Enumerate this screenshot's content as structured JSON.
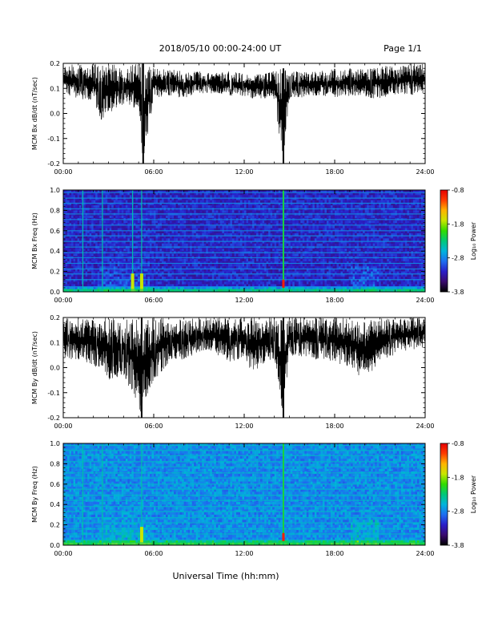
{
  "header": {
    "title": "2018/05/10  00:00-24:00 UT",
    "page": "Page 1/1"
  },
  "footer": {
    "xlabel": "Universal Time (hh:mm)"
  },
  "colorbar": {
    "label": "Log₁₀ Power",
    "ticks": [
      "-0.8",
      "-1.8",
      "-2.8",
      "-3.8"
    ],
    "range": [
      -3.8,
      -0.8
    ],
    "colormap": [
      "#000000",
      "#3a0a6e",
      "#2a1ec8",
      "#1e6ef0",
      "#00b4dc",
      "#00c878",
      "#32dc00",
      "#c8e600",
      "#ffb400",
      "#ff3c00",
      "#e60000"
    ]
  },
  "chart_data": [
    {
      "type": "line",
      "ylabel": "MCM Bx dB/dt (nT/sec)",
      "xlim": [
        0,
        24
      ],
      "ylim": [
        -0.2,
        0.2
      ],
      "x_ticks": [
        "00:00",
        "06:00",
        "12:00",
        "18:00",
        "24:00"
      ],
      "y_ticks": [
        "-0.2",
        "-0.1",
        "0.0",
        "0.1",
        "0.2"
      ],
      "envelope": {
        "hours": [
          0,
          1,
          2,
          2.5,
          3,
          4,
          5,
          5.3,
          6,
          7,
          8,
          9,
          10,
          11,
          12,
          12.5,
          13,
          14,
          14.6,
          15,
          16,
          17,
          18,
          19,
          20,
          21,
          22,
          23,
          24
        ],
        "upper": [
          0.19,
          0.2,
          0.2,
          0.19,
          0.2,
          0.19,
          0.2,
          0.2,
          0.18,
          0.18,
          0.17,
          0.17,
          0.16,
          0.17,
          0.16,
          0.15,
          0.16,
          0.17,
          0.18,
          0.17,
          0.17,
          0.17,
          0.18,
          0.18,
          0.18,
          0.19,
          0.19,
          0.2,
          0.2
        ],
        "lower": [
          0.08,
          0.06,
          0.04,
          -0.03,
          0.0,
          0.03,
          0.02,
          -0.2,
          0.06,
          0.07,
          0.06,
          0.08,
          0.08,
          0.07,
          0.07,
          0.06,
          0.06,
          0.05,
          -0.2,
          0.06,
          0.06,
          0.07,
          0.06,
          0.07,
          0.06,
          0.06,
          0.07,
          0.07,
          0.08
        ]
      }
    },
    {
      "type": "heatmap",
      "ylabel": "MCM Bx Freq (Hz)",
      "xlim": [
        0,
        24
      ],
      "ylim": [
        0,
        1
      ],
      "x_ticks": [
        "00:00",
        "06:00",
        "12:00",
        "18:00",
        "24:00"
      ],
      "y_ticks": [
        "0.0",
        "0.2",
        "0.4",
        "0.6",
        "0.8",
        "1.0"
      ],
      "value_range": [
        -3.8,
        -0.8
      ],
      "harmonic_lines_hz": [
        0.05,
        0.12,
        0.175,
        0.225,
        0.28,
        0.335,
        0.385,
        0.44,
        0.495,
        0.55,
        0.6,
        0.655,
        0.71,
        0.765,
        0.815,
        0.87,
        0.92,
        0.975
      ],
      "bright_events_hours": [
        1.3,
        2.6,
        4.6,
        5.2,
        14.6
      ]
    },
    {
      "type": "line",
      "ylabel": "MCM By dB/dt (nT/sec)",
      "xlim": [
        0,
        24
      ],
      "ylim": [
        -0.2,
        0.2
      ],
      "x_ticks": [
        "00:00",
        "06:00",
        "12:00",
        "18:00",
        "24:00"
      ],
      "y_ticks": [
        "-0.2",
        "-0.1",
        "0.0",
        "0.1",
        "0.2"
      ],
      "envelope": {
        "hours": [
          0,
          1,
          2,
          3,
          4,
          4.7,
          5.2,
          6,
          7,
          8,
          9,
          10,
          11,
          12,
          12.5,
          13,
          14,
          14.6,
          15,
          16,
          17,
          18,
          19,
          20,
          21,
          22,
          23,
          24
        ],
        "upper": [
          0.2,
          0.2,
          0.2,
          0.2,
          0.2,
          0.2,
          0.2,
          0.2,
          0.2,
          0.19,
          0.2,
          0.2,
          0.2,
          0.2,
          0.2,
          0.2,
          0.2,
          0.2,
          0.2,
          0.2,
          0.2,
          0.2,
          0.2,
          0.19,
          0.2,
          0.2,
          0.2,
          0.2
        ],
        "lower": [
          0.04,
          0.02,
          0.01,
          -0.05,
          -0.03,
          -0.12,
          -0.2,
          -0.06,
          0.02,
          0.03,
          0.06,
          0.06,
          0.02,
          0.04,
          -0.02,
          0.0,
          0.03,
          -0.2,
          0.05,
          0.04,
          0.03,
          0.02,
          0.0,
          -0.06,
          0.03,
          0.05,
          0.07,
          0.08
        ]
      }
    },
    {
      "type": "heatmap",
      "ylabel": "MCM By Freq (Hz)",
      "xlim": [
        0,
        24
      ],
      "ylim": [
        0,
        1
      ],
      "x_ticks": [
        "00:00",
        "06:00",
        "12:00",
        "18:00",
        "24:00"
      ],
      "y_ticks": [
        "0.0",
        "0.2",
        "0.4",
        "0.6",
        "0.8",
        "1.0"
      ],
      "value_range": [
        -3.8,
        -0.8
      ],
      "harmonic_lines_hz": [
        0.05,
        0.11,
        0.16,
        0.22,
        0.27,
        0.33,
        0.38,
        0.44,
        0.49,
        0.55,
        0.6,
        0.66,
        0.71,
        0.77,
        0.82,
        0.88,
        0.93,
        0.98
      ],
      "bright_events_hours": [
        1.3,
        2.6,
        5.2,
        14.6
      ]
    }
  ]
}
